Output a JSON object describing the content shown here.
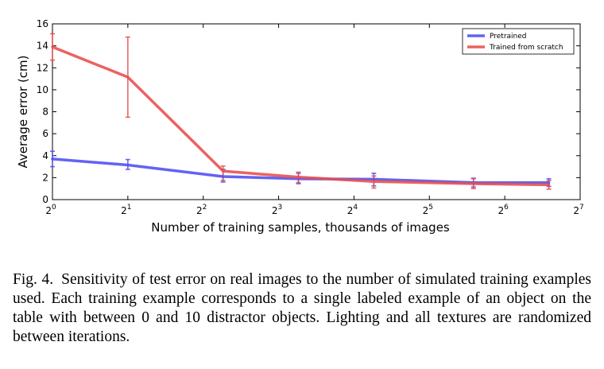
{
  "chart_data": {
    "type": "line",
    "x_scale": "log2",
    "x": [
      1,
      2,
      4.8,
      9.6,
      19.2,
      48,
      96
    ],
    "xlim": [
      1,
      128
    ],
    "ylim": [
      0,
      16
    ],
    "xticks": [
      1,
      2,
      4,
      8,
      16,
      32,
      64,
      128
    ],
    "xtick_labels": [
      {
        "base": "2",
        "exp": "0"
      },
      {
        "base": "2",
        "exp": "1"
      },
      {
        "base": "2",
        "exp": "2"
      },
      {
        "base": "2",
        "exp": "3"
      },
      {
        "base": "2",
        "exp": "4"
      },
      {
        "base": "2",
        "exp": "5"
      },
      {
        "base": "2",
        "exp": "6"
      },
      {
        "base": "2",
        "exp": "7"
      }
    ],
    "yticks": [
      0,
      2,
      4,
      6,
      8,
      10,
      12,
      14,
      16
    ],
    "xlabel": "Number of training samples, thousands of images",
    "ylabel": "Average error (cm)",
    "grid": false,
    "legend_position": "top-right",
    "series": [
      {
        "name": "Pretrained",
        "color": "#4d4df0",
        "values": [
          3.7,
          3.15,
          2.1,
          1.9,
          1.85,
          1.55,
          1.55
        ],
        "err_low": [
          3.0,
          2.75,
          1.6,
          1.45,
          1.25,
          1.15,
          1.2
        ],
        "err_high": [
          4.4,
          3.65,
          2.75,
          2.4,
          2.4,
          1.95,
          1.9
        ]
      },
      {
        "name": "Trained from scratch",
        "color": "#e84c4c",
        "values": [
          13.9,
          11.15,
          2.6,
          2.05,
          1.65,
          1.45,
          1.35
        ],
        "err_low": [
          12.7,
          7.5,
          1.75,
          1.55,
          1.05,
          1.0,
          0.95
        ],
        "err_high": [
          15.1,
          14.8,
          3.05,
          2.5,
          2.15,
          1.9,
          1.75
        ]
      }
    ]
  },
  "caption": {
    "label": "Fig. 4.",
    "text": "Sensitivity of test error on real images to the number of simulated training examples used. Each training example corresponds to a single labeled example of an object on the table with between 0 and 10 distractor objects. Lighting and all textures are randomized between iterations."
  }
}
